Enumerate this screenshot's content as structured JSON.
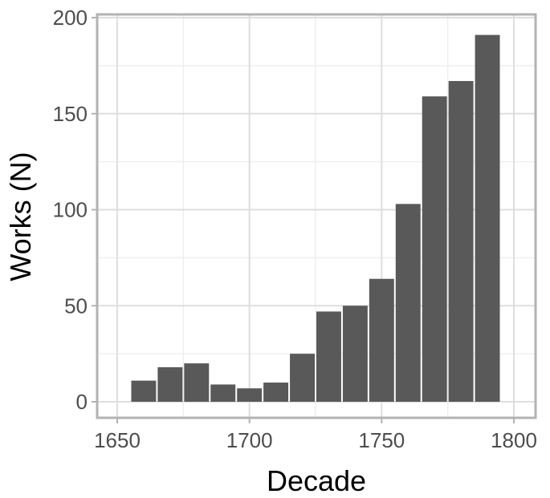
{
  "chart_data": {
    "type": "bar",
    "xlabel": "Decade",
    "ylabel": "Works (N)",
    "xlim": [
      1650,
      1800
    ],
    "ylim": [
      0,
      200
    ],
    "x_ticks": [
      1650,
      1700,
      1750,
      1800
    ],
    "y_ticks": [
      0,
      50,
      100,
      150,
      200
    ],
    "bin_width": 10,
    "x": [
      1660,
      1670,
      1680,
      1690,
      1700,
      1710,
      1720,
      1730,
      1740,
      1750,
      1760,
      1770,
      1780,
      1790
    ],
    "values": [
      11,
      18,
      20,
      9,
      7,
      10,
      25,
      47,
      50,
      64,
      103,
      159,
      167,
      191
    ],
    "grid": true,
    "colors": {
      "bar": "#595959",
      "panel_border": "#b3b3b3",
      "grid_major": "#dedede",
      "grid_minor": "#efefef",
      "tick_label": "#4d4d4d"
    }
  }
}
